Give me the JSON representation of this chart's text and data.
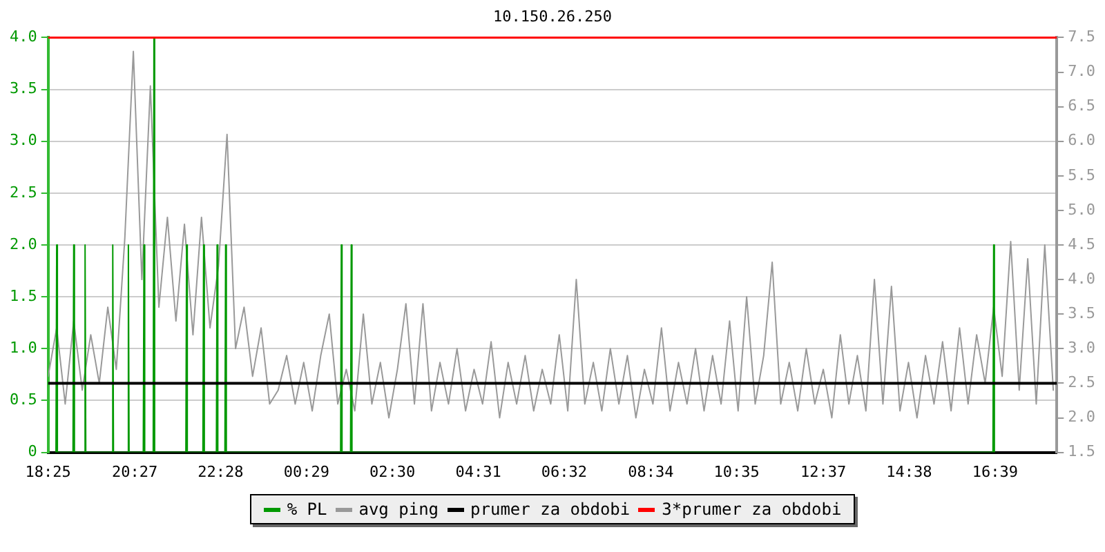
{
  "chart_data": {
    "type": "line",
    "title": "10.150.26.250",
    "legend": "bottom",
    "grid": "y",
    "xlim": [
      "--01-01T18:25",
      "--01-02T18:06"
    ],
    "xticks": [
      {
        "value": "--01-01T18:25",
        "label": "18:25"
      },
      {
        "value": "--01-01T20:27",
        "label": "20:27"
      },
      {
        "value": "--01-01T22:28",
        "label": "22:28"
      },
      {
        "value": "--01-02T00:29",
        "label": "00:29"
      },
      {
        "value": "--01-02T02:30",
        "label": "02:30"
      },
      {
        "value": "--01-02T04:31",
        "label": "04:31"
      },
      {
        "value": "--01-02T06:32",
        "label": "06:32"
      },
      {
        "value": "--01-02T08:34",
        "label": "08:34"
      },
      {
        "value": "--01-02T10:35",
        "label": "10:35"
      },
      {
        "value": "--01-02T12:37",
        "label": "12:37"
      },
      {
        "value": "--01-02T14:38",
        "label": "14:38"
      },
      {
        "value": "--01-02T16:39",
        "label": "16:39"
      }
    ],
    "ylim": [
      0,
      4
    ],
    "yticks": [
      0,
      {
        "value": 0.5,
        "label": "0.5"
      },
      {
        "value": 1,
        "label": "1.0"
      },
      {
        "value": 1.5,
        "label": "1.5"
      },
      {
        "value": 2,
        "label": "2.0"
      },
      {
        "value": 2.5,
        "label": "2.5"
      },
      {
        "value": 3,
        "label": "3.0"
      },
      {
        "value": 3.5,
        "label": "3.5"
      },
      {
        "value": 4,
        "label": "4.0"
      }
    ],
    "y2lim": [
      1.5,
      7.5
    ],
    "y2ticks": [
      1.5,
      {
        "value": 2,
        "label": "2.0"
      },
      2.5,
      {
        "value": 3,
        "label": "3.0"
      },
      3.5,
      {
        "value": 4,
        "label": "4.0"
      },
      4.5,
      {
        "value": 5,
        "label": "5.0"
      },
      5.5,
      {
        "value": 6,
        "label": "6.0"
      },
      6.5,
      {
        "value": 7,
        "label": "7.0"
      },
      7.5
    ],
    "series": [
      {
        "name": "% PL",
        "color": "#009900",
        "x": [
          "--01-01T18:36",
          "--01-01T18:37",
          "--01-01T18:38",
          "--01-01T19:00",
          "--01-01T19:01",
          "--01-01T19:02",
          "--01-01T19:16",
          "--01-01T19:17",
          "--01-01T19:18",
          "--01-01T19:55",
          "--01-01T19:56",
          "--01-01T19:57",
          "--01-01T20:17",
          "--01-01T20:18",
          "--01-01T20:19",
          "--01-01T20:39",
          "--01-01T20:40",
          "--01-01T20:41",
          "--01-01T20:53",
          "--01-01T20:54",
          "--01-01T20:55",
          "--01-01T21:39",
          "--01-01T21:40",
          "--01-01T21:41",
          "--01-01T22:03",
          "--01-01T22:04",
          "--01-01T22:05",
          "--01-01T22:22",
          "--01-01T22:23",
          "--01-01T22:24",
          "--01-01T22:34",
          "--01-01T22:35",
          "--01-01T22:36",
          "--01-02T01:17",
          "--01-02T01:18",
          "--01-02T01:19",
          "--01-02T01:31",
          "--01-02T01:32",
          "--01-02T01:33",
          "--01-02T16:36",
          "--01-02T16:37",
          "--01-02T16:38"
        ],
        "values": [
          0,
          2,
          0,
          0,
          2,
          0,
          0,
          2,
          0,
          0,
          2,
          0,
          0,
          2,
          0,
          0,
          2,
          0,
          0,
          4,
          0,
          0,
          2,
          0,
          0,
          2,
          0,
          0,
          2,
          0,
          0,
          2,
          0,
          0,
          2,
          0,
          0,
          2,
          0,
          0,
          2,
          0
        ]
      },
      {
        "name": "avg ping",
        "color": "#999999",
        "axis": "y2",
        "x": [
          "--01-01T18:25",
          "--01-01T18:37",
          "--01-01T18:49",
          "--01-01T19:01",
          "--01-01T19:13",
          "--01-01T19:25",
          "--01-01T19:37",
          "--01-01T19:49",
          "--01-01T20:01",
          "--01-01T20:13",
          "--01-01T20:25",
          "--01-01T20:37",
          "--01-01T20:49",
          "--01-01T21:01",
          "--01-01T21:13",
          "--01-01T21:25",
          "--01-01T21:37",
          "--01-01T21:49",
          "--01-01T22:01",
          "--01-01T22:13",
          "--01-01T22:25",
          "--01-01T22:37",
          "--01-01T22:49",
          "--01-01T23:01",
          "--01-01T23:13",
          "--01-01T23:25",
          "--01-01T23:37",
          "--01-01T23:49",
          "--01-02T00:01",
          "--01-02T00:13",
          "--01-02T00:25",
          "--01-02T00:37",
          "--01-02T00:49",
          "--01-02T01:01",
          "--01-02T01:13",
          "--01-02T01:25",
          "--01-02T01:37",
          "--01-02T01:49",
          "--01-02T02:01",
          "--01-02T02:13",
          "--01-02T02:25",
          "--01-02T02:37",
          "--01-02T02:49",
          "--01-02T03:01",
          "--01-02T03:13",
          "--01-02T03:25",
          "--01-02T03:37",
          "--01-02T03:49",
          "--01-02T04:01",
          "--01-02T04:13",
          "--01-02T04:25",
          "--01-02T04:37",
          "--01-02T04:49",
          "--01-02T05:01",
          "--01-02T05:13",
          "--01-02T05:25",
          "--01-02T05:37",
          "--01-02T05:49",
          "--01-02T06:01",
          "--01-02T06:13",
          "--01-02T06:25",
          "--01-02T06:37",
          "--01-02T06:49",
          "--01-02T07:01",
          "--01-02T07:13",
          "--01-02T07:25",
          "--01-02T07:37",
          "--01-02T07:49",
          "--01-02T08:01",
          "--01-02T08:13",
          "--01-02T08:25",
          "--01-02T08:37",
          "--01-02T08:49",
          "--01-02T09:01",
          "--01-02T09:13",
          "--01-02T09:25",
          "--01-02T09:37",
          "--01-02T09:49",
          "--01-02T10:01",
          "--01-02T10:13",
          "--01-02T10:25",
          "--01-02T10:37",
          "--01-02T10:49",
          "--01-02T11:01",
          "--01-02T11:13",
          "--01-02T11:25",
          "--01-02T11:37",
          "--01-02T11:49",
          "--01-02T12:01",
          "--01-02T12:13",
          "--01-02T12:25",
          "--01-02T12:37",
          "--01-02T12:49",
          "--01-02T13:01",
          "--01-02T13:13",
          "--01-02T13:25",
          "--01-02T13:37",
          "--01-02T13:49",
          "--01-02T14:01",
          "--01-02T14:13",
          "--01-02T14:25",
          "--01-02T14:37",
          "--01-02T14:49",
          "--01-02T15:01",
          "--01-02T15:13",
          "--01-02T15:25",
          "--01-02T15:37",
          "--01-02T15:49",
          "--01-02T16:01",
          "--01-02T16:13",
          "--01-02T16:25",
          "--01-02T16:37",
          "--01-02T16:49",
          "--01-02T17:01",
          "--01-02T17:13",
          "--01-02T17:25",
          "--01-02T17:37",
          "--01-02T17:49",
          "--01-02T18:01"
        ],
        "values": [
          2.6,
          3.3,
          2.2,
          3.4,
          2.4,
          3.2,
          2.5,
          3.6,
          2.7,
          4.6,
          7.3,
          4.0,
          6.8,
          3.6,
          4.9,
          3.4,
          4.8,
          3.2,
          4.9,
          3.3,
          4.2,
          6.1,
          3.0,
          3.6,
          2.6,
          3.3,
          2.2,
          2.4,
          2.9,
          2.2,
          2.8,
          2.1,
          2.9,
          3.5,
          2.2,
          2.7,
          2.1,
          3.5,
          2.2,
          2.8,
          2.0,
          2.7,
          3.65,
          2.2,
          3.65,
          2.1,
          2.8,
          2.2,
          3.0,
          2.1,
          2.7,
          2.2,
          3.1,
          2.0,
          2.8,
          2.2,
          2.9,
          2.1,
          2.7,
          2.2,
          3.2,
          2.1,
          4.0,
          2.2,
          2.8,
          2.1,
          3.0,
          2.2,
          2.9,
          2.0,
          2.7,
          2.2,
          3.3,
          2.1,
          2.8,
          2.2,
          3.0,
          2.1,
          2.9,
          2.2,
          3.4,
          2.1,
          3.75,
          2.2,
          2.9,
          4.25,
          2.2,
          2.8,
          2.1,
          3.0,
          2.2,
          2.7,
          2.0,
          3.2,
          2.2,
          2.9,
          2.1,
          4.0,
          2.2,
          3.9,
          2.1,
          2.8,
          2.0,
          2.9,
          2.2,
          3.1,
          2.1,
          3.3,
          2.2,
          3.2,
          2.5,
          3.6,
          2.6,
          4.55,
          2.4,
          4.3,
          2.2,
          4.5,
          2.4
        ]
      }
    ],
    "ref_lines": [
      {
        "axis": "y2",
        "value": 2.5,
        "label": "prumer za obdobi",
        "color": "#000000"
      },
      {
        "axis": "y2",
        "value": 7.5,
        "label": "3*prumer za obdobi",
        "color": "#ff0000"
      }
    ]
  }
}
